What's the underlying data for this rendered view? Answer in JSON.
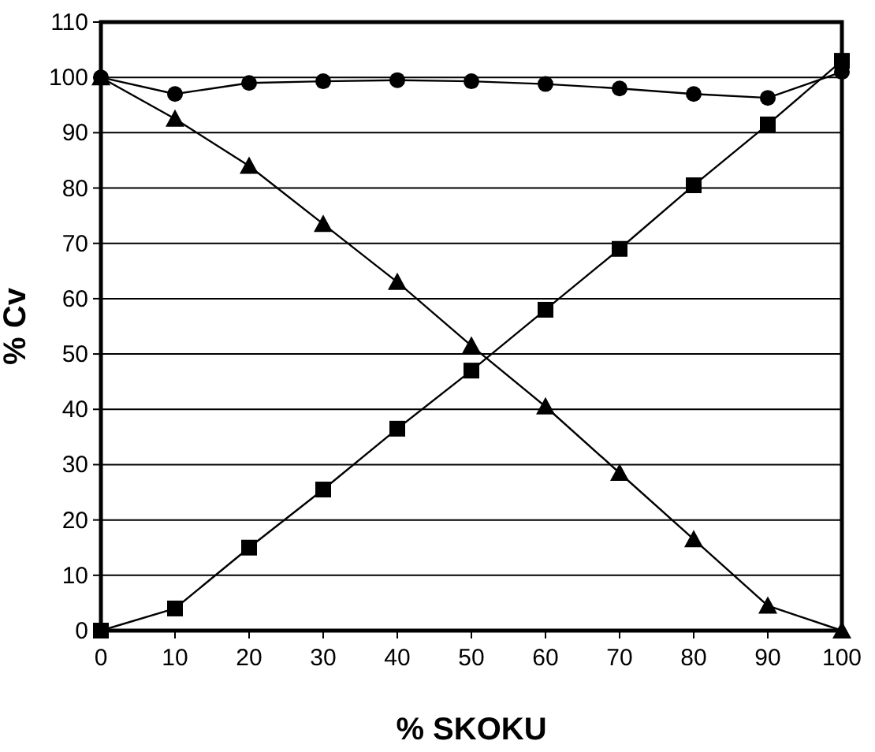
{
  "chart_data": {
    "type": "line",
    "xlabel": "% SKOKU",
    "ylabel": "% Cv",
    "x": [
      0,
      10,
      20,
      30,
      40,
      50,
      60,
      70,
      80,
      90,
      100
    ],
    "xlim": [
      0,
      100
    ],
    "xticks": [
      0,
      10,
      20,
      30,
      40,
      50,
      60,
      70,
      80,
      90,
      100
    ],
    "ylim": [
      0,
      110
    ],
    "yticks": [
      0,
      10,
      20,
      30,
      40,
      50,
      60,
      70,
      80,
      90,
      100,
      110
    ],
    "grid": "y",
    "series": [
      {
        "color": "#000000",
        "marker": "circle",
        "values": [
          100,
          97,
          99,
          99.3,
          99.5,
          99.3,
          98.8,
          98,
          97,
          96.3,
          101
        ]
      },
      {
        "color": "#000000",
        "marker": "triangle",
        "values": [
          100,
          92.5,
          84,
          73.5,
          63,
          51.5,
          40.5,
          28.5,
          16.5,
          4.5,
          0
        ]
      },
      {
        "color": "#000000",
        "marker": "square",
        "values": [
          0,
          4,
          15,
          25.5,
          36.5,
          47,
          58,
          69,
          80.5,
          91.5,
          103
        ]
      }
    ]
  }
}
